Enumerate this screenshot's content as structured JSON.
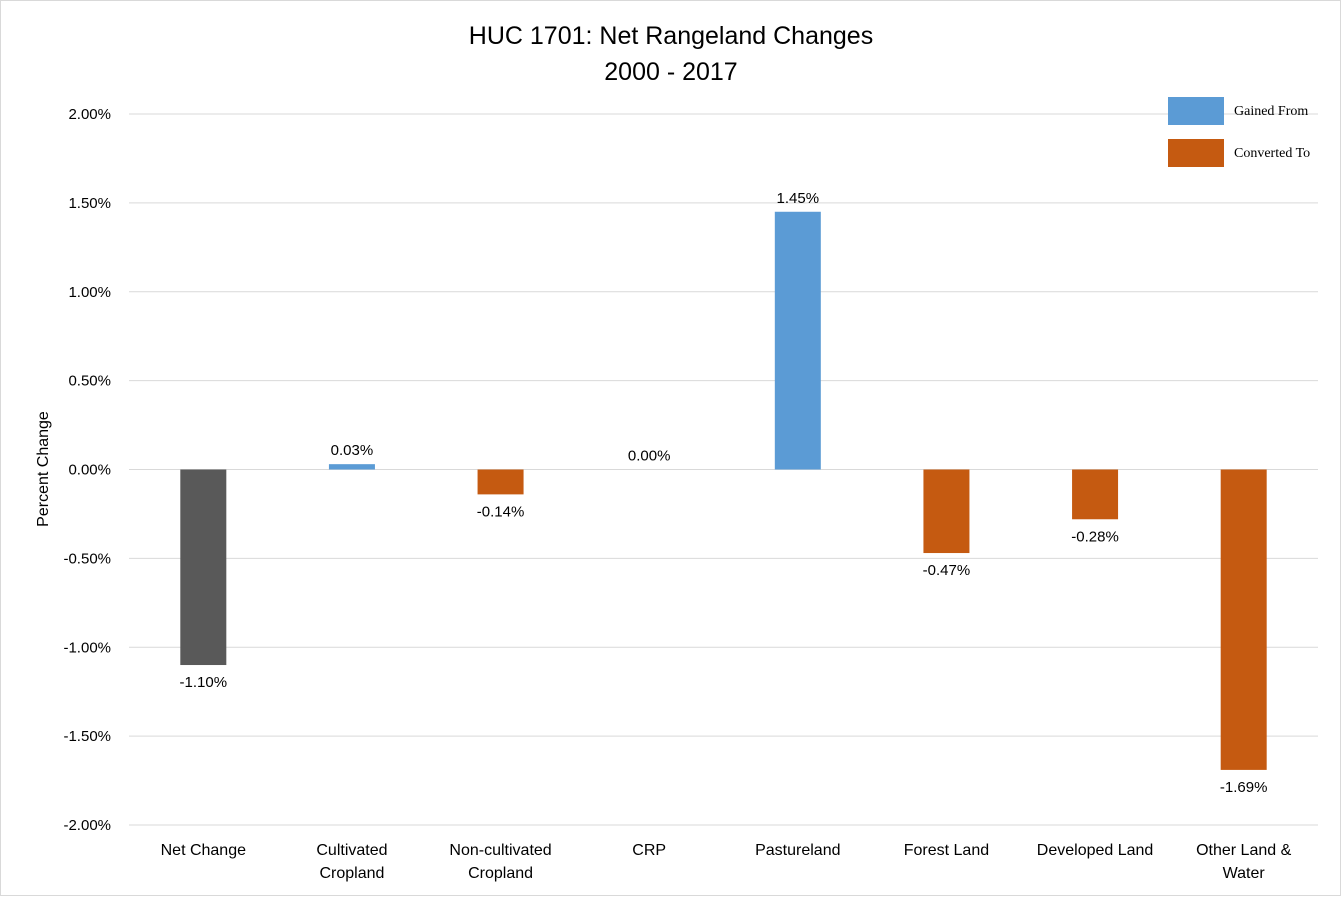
{
  "chart_data": {
    "type": "bar",
    "title": [
      "HUC 1701: Net Rangeland Changes",
      "2000 - 2017"
    ],
    "xlabel": "",
    "ylabel": "Percent Change",
    "ylim": [
      -2.0,
      2.0
    ],
    "yticks": [
      2.0,
      1.5,
      1.0,
      0.5,
      0.0,
      -0.5,
      -1.0,
      -1.5,
      -2.0
    ],
    "ytick_labels": [
      "2.00%",
      "1.50%",
      "1.00%",
      "0.50%",
      "0.00%",
      "-0.50%",
      "-1.00%",
      "-1.50%",
      "-2.00%"
    ],
    "grid": true,
    "legend_position": "top-right",
    "legend": [
      {
        "name": "Gained From",
        "color": "#5b9bd5"
      },
      {
        "name": "Converted To",
        "color": "#c55a11"
      }
    ],
    "categories": [
      [
        "Net Change"
      ],
      [
        "Cultivated",
        "Cropland"
      ],
      [
        "Non-cultivated",
        "Cropland"
      ],
      [
        "CRP"
      ],
      [
        "Pastureland"
      ],
      [
        "Forest Land"
      ],
      [
        "Developed Land"
      ],
      [
        "Other Land &",
        "Water"
      ]
    ],
    "values": [
      -1.1,
      0.03,
      -0.14,
      0.0,
      1.45,
      -0.47,
      -0.28,
      -1.69
    ],
    "data_labels": [
      "-1.10%",
      "0.03%",
      "-0.14%",
      "0.00%",
      "1.45%",
      "-0.47%",
      "-0.28%",
      "-1.69%"
    ],
    "bar_colors": [
      "#595959",
      "#5b9bd5",
      "#c55a11",
      "#5b9bd5",
      "#5b9bd5",
      "#c55a11",
      "#c55a11",
      "#c55a11"
    ]
  }
}
